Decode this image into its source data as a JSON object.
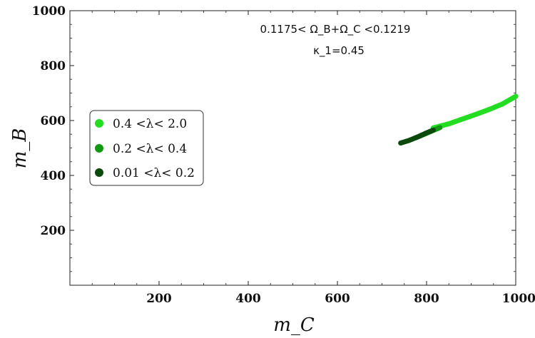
{
  "chart_data": {
    "type": "scatter",
    "xlabel": "m_C",
    "ylabel": "m_B",
    "xlim": [
      0,
      1000
    ],
    "ylim": [
      0,
      1000
    ],
    "x_ticks": [
      200,
      400,
      600,
      800,
      1000
    ],
    "y_ticks": [
      200,
      400,
      600,
      800,
      1000
    ],
    "grid": false,
    "legend_position": "middle-left",
    "annotations": [
      "0.1175< Ω_B+Ω_C <0.1219",
      "κ_1=0.45"
    ],
    "series": [
      {
        "name": "0.4 <λ< 2.0",
        "color": "#22dd22",
        "x": [
          815,
          850,
          880,
          910,
          940,
          970,
          1000
        ],
        "y": [
          573,
          588,
          605,
          622,
          640,
          660,
          688
        ]
      },
      {
        "name": "0.2 <λ< 0.4",
        "color": "#119911",
        "x": [
          775,
          795,
          815,
          830
        ],
        "y": [
          537,
          550,
          564,
          574
        ]
      },
      {
        "name": "0.01 <λ< 0.2",
        "color": "#0b4a0b",
        "x": [
          742,
          760,
          780,
          800,
          815
        ],
        "y": [
          518,
          527,
          540,
          555,
          565
        ]
      }
    ]
  }
}
